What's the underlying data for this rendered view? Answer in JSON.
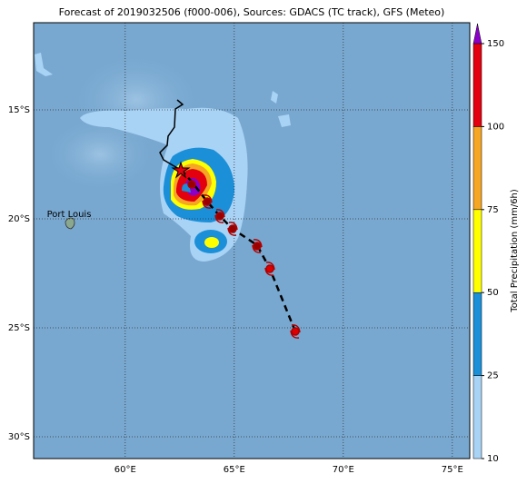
{
  "chart_data": {
    "type": "map",
    "title": "Forecast of 2019032506 (f000-006), Sources: GDACS (TC track), GFS (Meteo)",
    "xlim": [
      55.8,
      75.8
    ],
    "ylim": [
      -31,
      -11
    ],
    "xticks": [
      {
        "value": 60,
        "label": "60°E"
      },
      {
        "value": 65,
        "label": "65°E"
      },
      {
        "value": 70,
        "label": "70°E"
      },
      {
        "value": 75,
        "label": "75°E"
      }
    ],
    "yticks": [
      {
        "value": -15,
        "label": "15°S"
      },
      {
        "value": -20,
        "label": "20°S"
      },
      {
        "value": -25,
        "label": "25°S"
      },
      {
        "value": -30,
        "label": "30°S"
      }
    ],
    "grid": true,
    "place_label": "Port Louis",
    "colorbar": {
      "label": "Total Precipitation (mm/6h)",
      "ticks": [
        10,
        25,
        50,
        75,
        100,
        150
      ],
      "colors": [
        "#a9d3f5",
        "#1b8fd8",
        "#ffff00",
        "#f5a623",
        "#e3000f"
      ],
      "extend_color": "#8a00c8"
    }
  }
}
